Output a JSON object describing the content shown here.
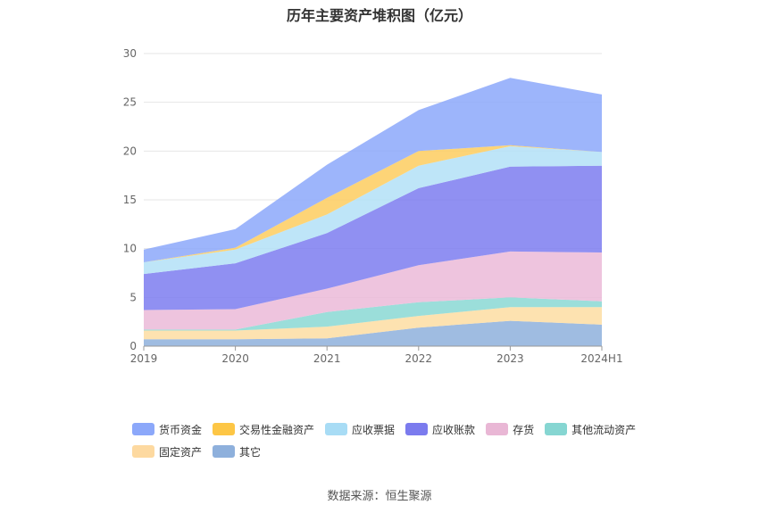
{
  "chart_data": {
    "type": "area",
    "stacked": true,
    "title": "历年主要资产堆积图（亿元）",
    "categories": [
      "2019",
      "2020",
      "2021",
      "2022",
      "2023",
      "2024H1"
    ],
    "ylim": [
      0,
      30
    ],
    "yticks": [
      0,
      5,
      10,
      15,
      20,
      25,
      30
    ],
    "grid": true,
    "legend_position": "bottom",
    "series": [
      {
        "name": "其它",
        "color": "#8eb0dc",
        "values": [
          0.7,
          0.7,
          0.8,
          1.9,
          2.6,
          2.2
        ]
      },
      {
        "name": "固定资产",
        "color": "#fddda2",
        "values": [
          0.9,
          0.9,
          1.2,
          1.2,
          1.4,
          1.8
        ]
      },
      {
        "name": "其他流动资产",
        "color": "#8ad8d4",
        "values": [
          0.1,
          0.1,
          1.5,
          1.4,
          1.0,
          0.6
        ]
      },
      {
        "name": "存货",
        "color": "#ebbad8",
        "values": [
          2.0,
          2.1,
          2.4,
          3.8,
          4.7,
          5.0
        ]
      },
      {
        "name": "应收账款",
        "color": "#7d7df0",
        "values": [
          3.7,
          4.7,
          5.7,
          7.9,
          8.7,
          8.9
        ]
      },
      {
        "name": "应收票据",
        "color": "#b3e1f7",
        "values": [
          1.2,
          1.4,
          1.9,
          2.3,
          2.1,
          1.4
        ]
      },
      {
        "name": "交易性金融资产",
        "color": "#fdcd5f",
        "values": [
          0.0,
          0.2,
          1.7,
          1.5,
          0.1,
          0.0
        ]
      },
      {
        "name": "货币资金",
        "color": "#8ca8fa",
        "values": [
          1.3,
          1.9,
          3.4,
          4.2,
          6.9,
          5.9
        ]
      }
    ]
  },
  "legend_order": [
    {
      "name": "货币资金",
      "color": "#8ca8fa"
    },
    {
      "name": "交易性金融资产",
      "color": "#fdc645"
    },
    {
      "name": "应收票据",
      "color": "#a8dcf5"
    },
    {
      "name": "应收账款",
      "color": "#7b7bee"
    },
    {
      "name": "存货",
      "color": "#e9b7d5"
    },
    {
      "name": "其他流动资产",
      "color": "#86d6d2"
    },
    {
      "name": "固定资产",
      "color": "#fdd9a0"
    },
    {
      "name": "其它",
      "color": "#8eb0dc"
    }
  ],
  "source": "数据来源：恒生聚源"
}
